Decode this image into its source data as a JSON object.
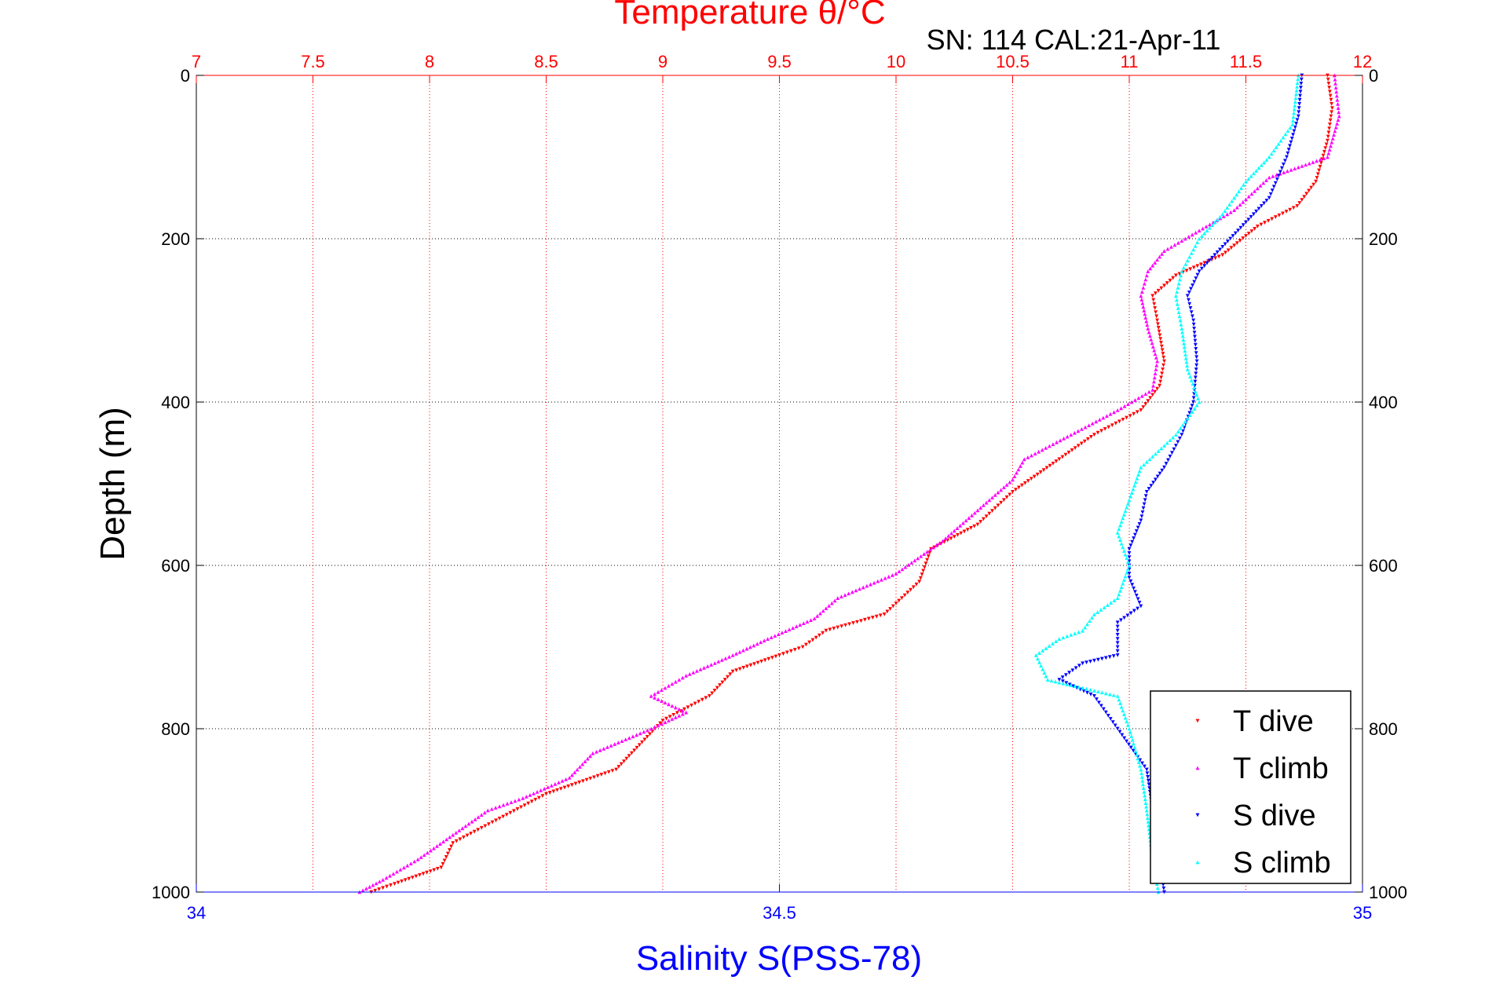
{
  "chart_data": {
    "type": "scatter",
    "title": "Temperature θ/°C",
    "subtitle": "SN: 114  CAL:21-Apr-11",
    "ylabel": "Depth (m)",
    "xlabel_top": "Temperature θ/°C",
    "xlabel_bottom": "Salinity S(PSS-78)",
    "ylim": [
      0,
      1000
    ],
    "y_reversed": true,
    "x_top_lim": [
      7,
      12
    ],
    "x_bottom_lim": [
      34,
      35
    ],
    "y_ticks": [
      "0",
      "200",
      "400",
      "600",
      "800",
      "1000"
    ],
    "x_top_ticks": [
      "7",
      "7.5",
      "8",
      "8.5",
      "9",
      "9.5",
      "10",
      "10.5",
      "11",
      "11.5",
      "12"
    ],
    "x_bottom_ticks": [
      "34",
      "34.5",
      "35"
    ],
    "grid": true,
    "legend_position": "bottom-right",
    "colors": {
      "temperature_axis": "#ff0000",
      "salinity_axis": "#0000ff",
      "t_dive": "#ff0000",
      "t_climb": "#ff00ff",
      "s_dive": "#0000ff",
      "s_climb": "#00ffff"
    },
    "series": [
      {
        "name": "T dive",
        "axis": "temperature",
        "color": "#ff0000",
        "marker": "triangle-down",
        "points": [
          [
            11.85,
            0
          ],
          [
            11.87,
            40
          ],
          [
            11.85,
            80
          ],
          [
            11.8,
            130
          ],
          [
            11.72,
            160
          ],
          [
            11.55,
            185
          ],
          [
            11.4,
            220
          ],
          [
            11.2,
            245
          ],
          [
            11.1,
            270
          ],
          [
            11.12,
            300
          ],
          [
            11.15,
            350
          ],
          [
            11.13,
            380
          ],
          [
            11.05,
            410
          ],
          [
            10.85,
            440
          ],
          [
            10.7,
            470
          ],
          [
            10.5,
            510
          ],
          [
            10.35,
            550
          ],
          [
            10.25,
            565
          ],
          [
            10.15,
            580
          ],
          [
            10.1,
            620
          ],
          [
            9.95,
            660
          ],
          [
            9.7,
            680
          ],
          [
            9.6,
            700
          ],
          [
            9.5,
            710
          ],
          [
            9.3,
            730
          ],
          [
            9.2,
            760
          ],
          [
            9.0,
            790
          ],
          [
            8.9,
            820
          ],
          [
            8.8,
            850
          ],
          [
            8.5,
            880
          ],
          [
            8.3,
            910
          ],
          [
            8.1,
            940
          ],
          [
            8.05,
            970
          ],
          [
            7.85,
            990
          ],
          [
            7.75,
            1000
          ]
        ]
      },
      {
        "name": "T climb",
        "axis": "temperature",
        "color": "#ff00ff",
        "marker": "triangle-up",
        "points": [
          [
            11.88,
            0
          ],
          [
            11.9,
            50
          ],
          [
            11.85,
            100
          ],
          [
            11.6,
            125
          ],
          [
            11.45,
            165
          ],
          [
            11.3,
            190
          ],
          [
            11.15,
            215
          ],
          [
            11.08,
            240
          ],
          [
            11.05,
            270
          ],
          [
            11.08,
            310
          ],
          [
            11.12,
            350
          ],
          [
            11.1,
            385
          ],
          [
            10.95,
            410
          ],
          [
            10.75,
            440
          ],
          [
            10.55,
            470
          ],
          [
            10.5,
            495
          ],
          [
            10.4,
            520
          ],
          [
            10.2,
            570
          ],
          [
            10.0,
            610
          ],
          [
            9.75,
            640
          ],
          [
            9.65,
            665
          ],
          [
            9.45,
            690
          ],
          [
            9.3,
            710
          ],
          [
            9.1,
            735
          ],
          [
            8.95,
            760
          ],
          [
            9.1,
            780
          ],
          [
            8.95,
            800
          ],
          [
            8.7,
            830
          ],
          [
            8.6,
            860
          ],
          [
            8.4,
            885
          ],
          [
            8.25,
            900
          ],
          [
            8.1,
            930
          ],
          [
            7.95,
            960
          ],
          [
            7.8,
            985
          ],
          [
            7.7,
            1000
          ]
        ]
      },
      {
        "name": "S dive",
        "axis": "salinity",
        "color": "#0000ff",
        "marker": "triangle-down",
        "points": [
          [
            34.948,
            0
          ],
          [
            34.945,
            50
          ],
          [
            34.935,
            100
          ],
          [
            34.92,
            150
          ],
          [
            34.9,
            180
          ],
          [
            34.88,
            210
          ],
          [
            34.86,
            240
          ],
          [
            34.85,
            270
          ],
          [
            34.855,
            300
          ],
          [
            34.858,
            350
          ],
          [
            34.855,
            400
          ],
          [
            34.845,
            440
          ],
          [
            34.83,
            480
          ],
          [
            34.815,
            510
          ],
          [
            34.81,
            545
          ],
          [
            34.8,
            580
          ],
          [
            34.8,
            615
          ],
          [
            34.81,
            650
          ],
          [
            34.79,
            670
          ],
          [
            34.79,
            710
          ],
          [
            34.76,
            720
          ],
          [
            34.74,
            740
          ],
          [
            34.77,
            760
          ],
          [
            34.79,
            800
          ],
          [
            34.815,
            850
          ],
          [
            34.82,
            900
          ],
          [
            34.825,
            950
          ],
          [
            34.83,
            1000
          ]
        ]
      },
      {
        "name": "S climb",
        "axis": "salinity",
        "color": "#00ffff",
        "marker": "triangle-up",
        "points": [
          [
            34.945,
            0
          ],
          [
            34.94,
            60
          ],
          [
            34.92,
            100
          ],
          [
            34.9,
            130
          ],
          [
            34.88,
            170
          ],
          [
            34.86,
            200
          ],
          [
            34.845,
            240
          ],
          [
            34.84,
            270
          ],
          [
            34.845,
            310
          ],
          [
            34.85,
            360
          ],
          [
            34.86,
            400
          ],
          [
            34.84,
            440
          ],
          [
            34.81,
            480
          ],
          [
            34.8,
            520
          ],
          [
            34.79,
            560
          ],
          [
            34.8,
            600
          ],
          [
            34.79,
            640
          ],
          [
            34.77,
            660
          ],
          [
            34.76,
            680
          ],
          [
            34.74,
            690
          ],
          [
            34.72,
            710
          ],
          [
            34.73,
            740
          ],
          [
            34.76,
            750
          ],
          [
            34.79,
            760
          ],
          [
            34.8,
            800
          ],
          [
            34.81,
            850
          ],
          [
            34.815,
            900
          ],
          [
            34.82,
            960
          ],
          [
            34.825,
            1000
          ]
        ]
      }
    ]
  }
}
